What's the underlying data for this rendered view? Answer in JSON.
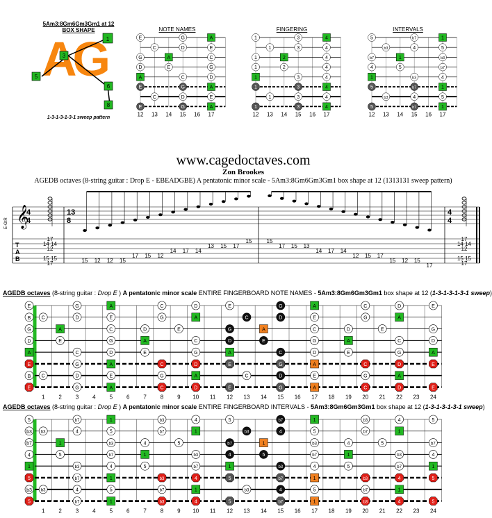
{
  "box_shape": {
    "heading": "5Am3:8Gm6Gm3Gm1 at 12",
    "subheading": "BOX SHAPE",
    "logo_text": "AG",
    "sweep": "1-3-1-3-1-3-1 sweep pattern",
    "markers": [
      "1",
      "3",
      "5",
      "6",
      "8"
    ]
  },
  "mini": {
    "titles": [
      "NOTE NAMES",
      "FINGERING",
      "INTERVALS"
    ],
    "frets": [
      "12",
      "13",
      "14",
      "15",
      "16",
      "17"
    ]
  },
  "header": {
    "site": "www.cagedoctaves.com",
    "author": "Zon Brookes",
    "description": "AGEDB octaves (8-string guitar : Drop E - EBEADGBE) A pentatonic minor scale - 5Am3:8Gm6Gm3Gm1 box shape at 12 (1313131 sweep pattern)"
  },
  "staff": {
    "time_sig_a": [
      "4",
      "4"
    ],
    "time_sig_b": [
      "13",
      "8"
    ],
    "tuning_label": "E-GtR",
    "tab_letters": [
      "T",
      "A",
      "B"
    ],
    "tab_line1": [
      "17",
      "14",
      "14",
      "12",
      "12",
      "15",
      "15",
      "17"
    ],
    "tab_run_up": [
      "15",
      "12",
      "12",
      "15",
      "17",
      "15",
      "12",
      "14",
      "17",
      "14",
      "13",
      "15",
      "17",
      "15"
    ],
    "tab_run_down": [
      "15",
      "17",
      "15",
      "13",
      "14",
      "17",
      "14",
      "12",
      "15",
      "17",
      "15",
      "12",
      "15",
      "17"
    ],
    "tab_line2": [
      "17",
      "14",
      "14",
      "12",
      "12",
      "15",
      "15",
      "17"
    ]
  },
  "fb1": {
    "title_parts": [
      "AGEDB octaves",
      "(8-string guitar : ",
      "Drop E",
      " ) ",
      "A pentatonic minor scale",
      " ENTIRE FINGERBOARD NOTE NAMES - ",
      "5Am3:8Gm6Gm3Gm1",
      " box shape at 12 (",
      "1-3-1-3-1-3-1 sweep",
      ")"
    ],
    "frets": [
      "1",
      "2",
      "3",
      "4",
      "5",
      "6",
      "7",
      "8",
      "9",
      "10",
      "11",
      "12",
      "13",
      "14",
      "15",
      "16",
      "17",
      "18",
      "19",
      "20",
      "21",
      "22",
      "23",
      "24"
    ]
  },
  "fb2": {
    "title_parts": [
      "AGEDB octaves",
      "(8-string guitar : ",
      "Drop E",
      " ) ",
      "A pentatonic minor scale",
      " ENTIRE FINGERBOARD INTERVALS - ",
      "5Am3:8Gm6Gm3Gm1",
      " box shape at 12 (",
      "1-3-1-3-1-3-1 sweep",
      ")"
    ],
    "frets": [
      "1",
      "2",
      "3",
      "4",
      "5",
      "6",
      "7",
      "8",
      "9",
      "10",
      "11",
      "12",
      "13",
      "14",
      "15",
      "16",
      "17",
      "18",
      "19",
      "20",
      "21",
      "22",
      "23",
      "24"
    ]
  },
  "notes": {
    "open": [
      "E",
      "B",
      "G",
      "D",
      "A",
      "E",
      "B",
      "E"
    ],
    "s1": [
      [
        "A",
        5
      ],
      [
        "C",
        8
      ],
      [
        "D",
        10
      ],
      [
        "E",
        12
      ],
      [
        "G",
        15
      ],
      [
        "A",
        17
      ],
      [
        "C",
        20
      ],
      [
        "D",
        22
      ],
      [
        "E",
        24
      ],
      [
        "G",
        3
      ]
    ],
    "s2": [
      [
        "C",
        1
      ],
      [
        "D",
        3
      ],
      [
        "E",
        5
      ],
      [
        "G",
        8
      ],
      [
        "A",
        10
      ],
      [
        "C",
        13
      ],
      [
        "D",
        15
      ],
      [
        "E",
        17
      ],
      [
        "G",
        20
      ],
      [
        "A",
        22
      ]
    ],
    "s3": [
      [
        "A",
        2
      ],
      [
        "C",
        5
      ],
      [
        "D",
        7
      ],
      [
        "E",
        9
      ],
      [
        "G",
        12
      ],
      [
        "A",
        14
      ],
      [
        "C",
        17
      ],
      [
        "D",
        19
      ],
      [
        "E",
        21
      ],
      [
        "G",
        24
      ]
    ],
    "s4": [
      [
        "E",
        2
      ],
      [
        "G",
        5
      ],
      [
        "A",
        7
      ],
      [
        "C",
        10
      ],
      [
        "D",
        12
      ],
      [
        "E",
        14
      ],
      [
        "G",
        17
      ],
      [
        "A",
        19
      ],
      [
        "C",
        22
      ],
      [
        "D",
        24
      ]
    ],
    "s5": [
      [
        "C",
        3
      ],
      [
        "D",
        5
      ],
      [
        "E",
        7
      ],
      [
        "G",
        10
      ],
      [
        "A",
        12
      ],
      [
        "C",
        15
      ],
      [
        "D",
        17
      ],
      [
        "E",
        19
      ],
      [
        "G",
        22
      ],
      [
        "A",
        24
      ]
    ],
    "s6": [
      [
        "G",
        3
      ],
      [
        "A",
        5
      ],
      [
        "C",
        8
      ],
      [
        "D",
        10
      ],
      [
        "E",
        12
      ],
      [
        "G",
        15
      ],
      [
        "A",
        17
      ],
      [
        "C",
        20
      ],
      [
        "D",
        22
      ],
      [
        "E",
        24
      ]
    ],
    "s7": [
      [
        "C",
        1
      ],
      [
        "D",
        3
      ],
      [
        "E",
        5
      ],
      [
        "G",
        8
      ],
      [
        "A",
        10
      ],
      [
        "C",
        13
      ],
      [
        "D",
        15
      ],
      [
        "E",
        17
      ],
      [
        "G",
        20
      ],
      [
        "A",
        22
      ]
    ],
    "s8": [
      [
        "G",
        3
      ],
      [
        "A",
        5
      ],
      [
        "C",
        8
      ],
      [
        "D",
        10
      ],
      [
        "E",
        12
      ],
      [
        "G",
        15
      ],
      [
        "A",
        17
      ],
      [
        "C",
        20
      ],
      [
        "D",
        22
      ],
      [
        "E",
        24
      ]
    ]
  },
  "intervals": {
    "open": [
      "5",
      "b3",
      "b7",
      "4",
      "1",
      "5",
      "b3",
      "5"
    ],
    "map": {
      "A": "1",
      "C": "b3",
      "D": "4",
      "E": "5",
      "G": "b7"
    }
  },
  "colors": {
    "green": "#22b822",
    "orange": "#f08020",
    "red": "#e0211a",
    "black": "#111111",
    "grey": "#555555",
    "logo": "#f7860f"
  }
}
